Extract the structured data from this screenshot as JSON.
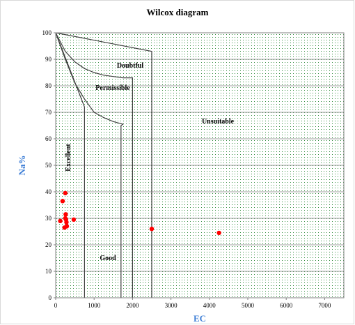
{
  "chart_data": {
    "type": "scatter",
    "title": "Wilcox diagram",
    "xlabel": "EC",
    "ylabel": "Na%",
    "xlim": [
      0,
      7500
    ],
    "ylim": [
      0,
      100
    ],
    "xticks": [
      0,
      1000,
      2000,
      3000,
      4000,
      5000,
      6000,
      7000
    ],
    "yticks": [
      0,
      10,
      20,
      30,
      40,
      50,
      60,
      70,
      80,
      90,
      100
    ],
    "grid": true,
    "marker_color": "#ff0000",
    "plot_background": "dotted-green",
    "zones": {
      "excellent": "Excellent",
      "good": "Good",
      "permissible": "Permissible",
      "doubtful": "Doubtful",
      "unsuitable": "Unsuitable"
    },
    "boundaries": [
      {
        "x": [
          0,
          2500,
          2500
        ],
        "y": [
          100,
          93,
          0
        ]
      },
      {
        "x": [
          0,
          250,
          500,
          750,
          1000,
          1250,
          1500,
          1750,
          2000,
          2000
        ],
        "y": [
          100,
          93,
          89,
          86.5,
          85,
          84,
          83.5,
          83,
          83,
          0
        ]
      },
      {
        "x": [
          0,
          250,
          500,
          750,
          1000,
          1250,
          1500,
          1750,
          1700,
          1700
        ],
        "y": [
          100,
          90,
          81,
          75,
          70,
          68,
          66.5,
          65.5,
          65,
          0
        ]
      },
      {
        "x": [
          0,
          750,
          750
        ],
        "y": [
          100,
          72,
          0
        ]
      }
    ],
    "points": [
      {
        "x": 120,
        "y": 29
      },
      {
        "x": 180,
        "y": 36.5
      },
      {
        "x": 230,
        "y": 26.5
      },
      {
        "x": 250,
        "y": 39.5
      },
      {
        "x": 250,
        "y": 30
      },
      {
        "x": 260,
        "y": 31.5
      },
      {
        "x": 270,
        "y": 29.5
      },
      {
        "x": 280,
        "y": 28.5
      },
      {
        "x": 290,
        "y": 27
      },
      {
        "x": 470,
        "y": 29.5
      },
      {
        "x": 2500,
        "y": 26
      },
      {
        "x": 4250,
        "y": 24.5
      }
    ]
  }
}
